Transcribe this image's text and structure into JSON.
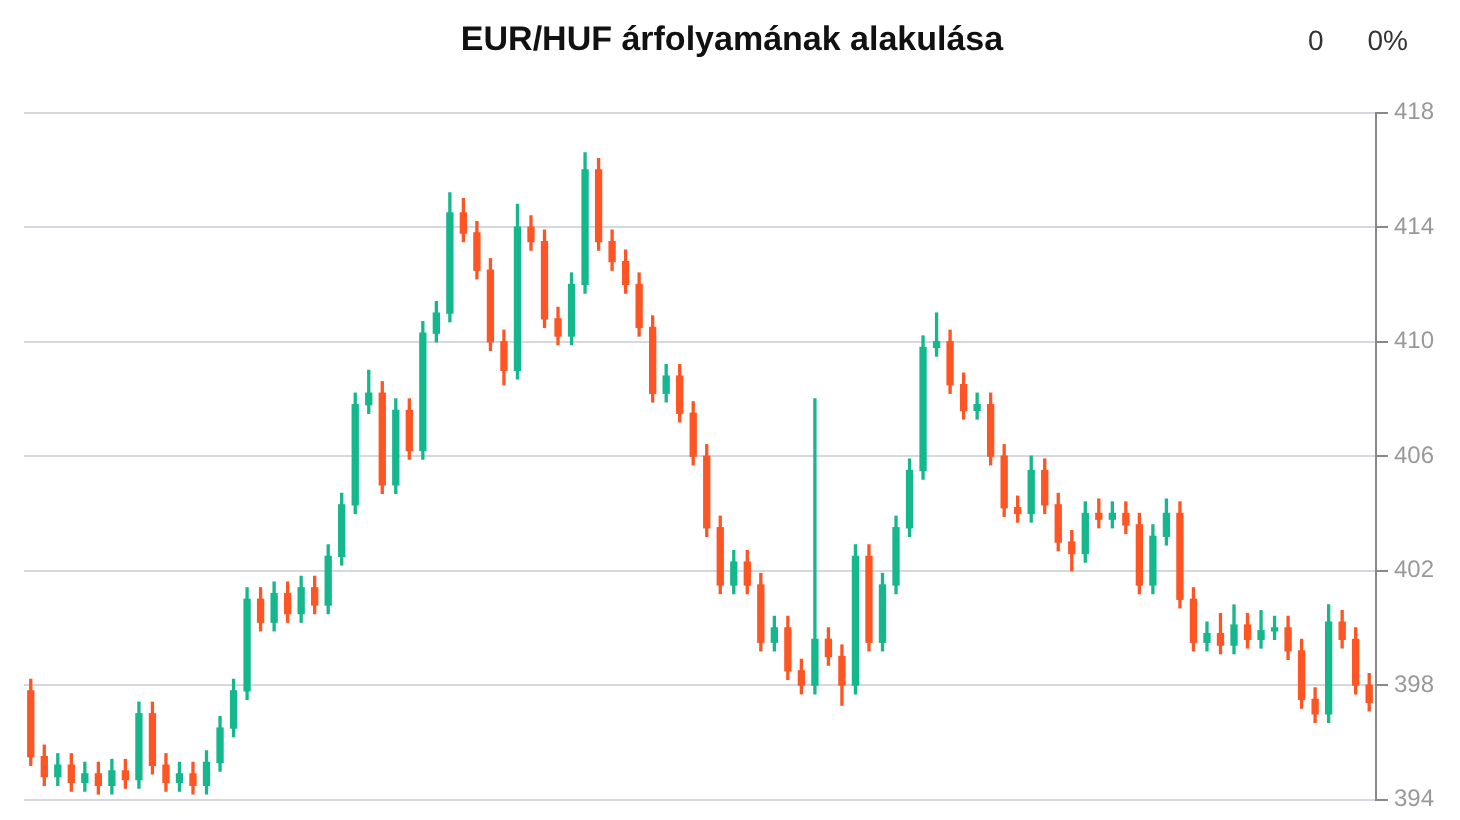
{
  "chart_data": {
    "type": "candlestick",
    "title": "EUR/HUF árfolyamának alakulása",
    "annotations": [
      "0",
      "0%"
    ],
    "categories": [
      null,
      null,
      null,
      null,
      null,
      null,
      null,
      null,
      null,
      null,
      null,
      null,
      null,
      null,
      null,
      null,
      null,
      null,
      null,
      null,
      null,
      null,
      null,
      null,
      null,
      null,
      null,
      null,
      null,
      null,
      null,
      null,
      null,
      null,
      null,
      null,
      null,
      null,
      null,
      null,
      null,
      null,
      null,
      null,
      null,
      null,
      null,
      null,
      null,
      null,
      null,
      null,
      null,
      null,
      null,
      null,
      null,
      null,
      null,
      null,
      null,
      null,
      null,
      null,
      null,
      null,
      null,
      null,
      null,
      null,
      null,
      null,
      null,
      null,
      null,
      null,
      null,
      null,
      null,
      null,
      null,
      null,
      null,
      null,
      null,
      null,
      null,
      null,
      null,
      null,
      null,
      null,
      null,
      null,
      null,
      null,
      null,
      null,
      null,
      null
    ],
    "ohlc": [
      [
        397.8,
        398.2,
        395.2,
        395.5
      ],
      [
        395.5,
        395.9,
        394.5,
        394.8
      ],
      [
        394.8,
        395.6,
        394.5,
        395.2
      ],
      [
        395.2,
        395.6,
        394.3,
        394.6
      ],
      [
        394.6,
        395.3,
        394.3,
        394.9
      ],
      [
        394.9,
        395.3,
        394.2,
        394.5
      ],
      [
        394.5,
        395.4,
        394.2,
        395.0
      ],
      [
        395.0,
        395.4,
        394.4,
        394.7
      ],
      [
        394.7,
        397.4,
        394.4,
        397.0
      ],
      [
        397.0,
        397.4,
        394.9,
        395.2
      ],
      [
        395.2,
        395.6,
        394.3,
        394.6
      ],
      [
        394.6,
        395.3,
        394.3,
        394.9
      ],
      [
        394.9,
        395.3,
        394.2,
        394.5
      ],
      [
        394.5,
        395.7,
        394.2,
        395.3
      ],
      [
        395.3,
        396.9,
        395.0,
        396.5
      ],
      [
        396.5,
        398.2,
        396.2,
        397.8
      ],
      [
        397.8,
        401.4,
        397.5,
        401.0
      ],
      [
        401.0,
        401.4,
        399.9,
        400.2
      ],
      [
        400.2,
        401.6,
        399.9,
        401.2
      ],
      [
        401.2,
        401.6,
        400.2,
        400.5
      ],
      [
        400.5,
        401.8,
        400.2,
        401.4
      ],
      [
        401.4,
        401.8,
        400.5,
        400.8
      ],
      [
        400.8,
        402.9,
        400.5,
        402.5
      ],
      [
        402.5,
        404.7,
        402.2,
        404.3
      ],
      [
        404.3,
        408.2,
        404.0,
        407.8
      ],
      [
        407.8,
        409.0,
        407.5,
        408.2
      ],
      [
        408.2,
        408.6,
        404.7,
        405.0
      ],
      [
        405.0,
        408.0,
        404.7,
        407.6
      ],
      [
        407.6,
        408.0,
        405.9,
        406.2
      ],
      [
        406.2,
        410.7,
        405.9,
        410.3
      ],
      [
        410.3,
        411.4,
        410.0,
        411.0
      ],
      [
        411.0,
        415.2,
        410.7,
        414.5
      ],
      [
        414.5,
        415.0,
        413.5,
        413.8
      ],
      [
        413.8,
        414.2,
        412.2,
        412.5
      ],
      [
        412.5,
        412.9,
        409.7,
        410.0
      ],
      [
        410.0,
        410.4,
        408.5,
        409.0
      ],
      [
        409.0,
        414.8,
        408.7,
        414.0
      ],
      [
        414.0,
        414.4,
        413.2,
        413.5
      ],
      [
        413.5,
        413.9,
        410.5,
        410.8
      ],
      [
        410.8,
        411.2,
        409.9,
        410.2
      ],
      [
        410.2,
        412.4,
        409.9,
        412.0
      ],
      [
        412.0,
        416.6,
        411.7,
        416.0
      ],
      [
        416.0,
        416.4,
        413.2,
        413.5
      ],
      [
        413.5,
        413.9,
        412.5,
        412.8
      ],
      [
        412.8,
        413.2,
        411.7,
        412.0
      ],
      [
        412.0,
        412.4,
        410.2,
        410.5
      ],
      [
        410.5,
        410.9,
        407.9,
        408.2
      ],
      [
        408.2,
        409.2,
        407.9,
        408.8
      ],
      [
        408.8,
        409.2,
        407.2,
        407.5
      ],
      [
        407.5,
        407.9,
        405.7,
        406.0
      ],
      [
        406.0,
        406.4,
        403.2,
        403.5
      ],
      [
        403.5,
        403.9,
        401.2,
        401.5
      ],
      [
        401.5,
        402.7,
        401.2,
        402.3
      ],
      [
        402.3,
        402.7,
        401.2,
        401.5
      ],
      [
        401.5,
        401.9,
        399.2,
        399.5
      ],
      [
        399.5,
        400.4,
        399.2,
        400.0
      ],
      [
        400.0,
        400.4,
        398.2,
        398.5
      ],
      [
        398.5,
        398.9,
        397.7,
        398.0
      ],
      [
        398.0,
        408.0,
        397.7,
        399.6
      ],
      [
        399.6,
        400.0,
        398.7,
        399.0
      ],
      [
        399.0,
        399.4,
        397.3,
        398.0
      ],
      [
        398.0,
        402.9,
        397.7,
        402.5
      ],
      [
        402.5,
        402.9,
        399.2,
        399.5
      ],
      [
        399.5,
        401.9,
        399.2,
        401.5
      ],
      [
        401.5,
        403.9,
        401.2,
        403.5
      ],
      [
        403.5,
        405.9,
        403.2,
        405.5
      ],
      [
        405.5,
        410.2,
        405.2,
        409.8
      ],
      [
        409.8,
        411.0,
        409.5,
        410.0
      ],
      [
        410.0,
        410.4,
        408.2,
        408.5
      ],
      [
        408.5,
        408.9,
        407.3,
        407.6
      ],
      [
        407.6,
        408.2,
        407.3,
        407.8
      ],
      [
        407.8,
        408.2,
        405.7,
        406.0
      ],
      [
        406.0,
        406.4,
        403.9,
        404.2
      ],
      [
        404.2,
        404.6,
        403.7,
        404.0
      ],
      [
        404.0,
        406.0,
        403.7,
        405.5
      ],
      [
        405.5,
        405.9,
        404.0,
        404.3
      ],
      [
        404.3,
        404.7,
        402.7,
        403.0
      ],
      [
        403.0,
        403.4,
        402.0,
        402.6
      ],
      [
        402.6,
        404.4,
        402.3,
        404.0
      ],
      [
        404.0,
        404.5,
        403.5,
        403.8
      ],
      [
        403.8,
        404.4,
        403.5,
        404.0
      ],
      [
        404.0,
        404.4,
        403.3,
        403.6
      ],
      [
        403.6,
        404.0,
        401.2,
        401.5
      ],
      [
        401.5,
        403.6,
        401.2,
        403.2
      ],
      [
        403.2,
        404.5,
        402.9,
        404.0
      ],
      [
        404.0,
        404.4,
        400.7,
        401.0
      ],
      [
        401.0,
        401.4,
        399.2,
        399.5
      ],
      [
        399.5,
        400.2,
        399.2,
        399.8
      ],
      [
        399.8,
        400.5,
        399.1,
        399.4
      ],
      [
        399.4,
        400.8,
        399.1,
        400.1
      ],
      [
        400.1,
        400.5,
        399.3,
        399.6
      ],
      [
        399.6,
        400.6,
        399.3,
        399.9
      ],
      [
        399.9,
        400.4,
        399.6,
        400.0
      ],
      [
        400.0,
        400.4,
        398.9,
        399.2
      ],
      [
        399.2,
        399.6,
        397.2,
        397.5
      ],
      [
        397.5,
        397.9,
        396.7,
        397.0
      ],
      [
        397.0,
        400.8,
        396.7,
        400.2
      ],
      [
        400.2,
        400.6,
        399.3,
        399.6
      ],
      [
        399.6,
        400.0,
        397.7,
        398.0
      ],
      [
        398.0,
        398.4,
        397.1,
        397.4
      ]
    ],
    "colors": [
      "#fd5523",
      "#fd5523",
      "#15b78d",
      "#fd5523",
      "#15b78d",
      "#fd5523",
      "#15b78d",
      "#fd5523",
      "#15b78d",
      "#fd5523",
      "#fd5523",
      "#15b78d",
      "#fd5523",
      "#15b78d",
      "#15b78d",
      "#15b78d",
      "#15b78d",
      "#fd5523",
      "#15b78d",
      "#fd5523",
      "#15b78d",
      "#fd5523",
      "#15b78d",
      "#15b78d",
      "#15b78d",
      "#15b78d",
      "#fd5523",
      "#15b78d",
      "#fd5523",
      "#15b78d",
      "#15b78d",
      "#15b78d",
      "#fd5523",
      "#fd5523",
      "#fd5523",
      "#fd5523",
      "#15b78d",
      "#fd5523",
      "#fd5523",
      "#fd5523",
      "#15b78d",
      "#15b78d",
      "#fd5523",
      "#fd5523",
      "#fd5523",
      "#fd5523",
      "#fd5523",
      "#15b78d",
      "#fd5523",
      "#fd5523",
      "#fd5523",
      "#fd5523",
      "#15b78d",
      "#fd5523",
      "#fd5523",
      "#15b78d",
      "#fd5523",
      "#fd5523",
      "#15b78d",
      "#fd5523",
      "#fd5523",
      "#15b78d",
      "#fd5523",
      "#15b78d",
      "#15b78d",
      "#15b78d",
      "#15b78d",
      "#15b78d",
      "#fd5523",
      "#fd5523",
      "#15b78d",
      "#fd5523",
      "#fd5523",
      "#fd5523",
      "#15b78d",
      "#fd5523",
      "#fd5523",
      "#fd5523",
      "#15b78d",
      "#fd5523",
      "#15b78d",
      "#fd5523",
      "#fd5523",
      "#15b78d",
      "#15b78d",
      "#fd5523",
      "#fd5523",
      "#15b78d",
      "#fd5523",
      "#15b78d",
      "#fd5523",
      "#15b78d",
      "#15b78d",
      "#fd5523",
      "#fd5523",
      "#fd5523",
      "#15b78d",
      "#fd5523",
      "#fd5523",
      "#fd5523"
    ],
    "ylim": [
      394,
      418
    ],
    "yticks": [
      394,
      398,
      402,
      406,
      410,
      414,
      418
    ],
    "grid": "y",
    "tick_labels": "y"
  }
}
